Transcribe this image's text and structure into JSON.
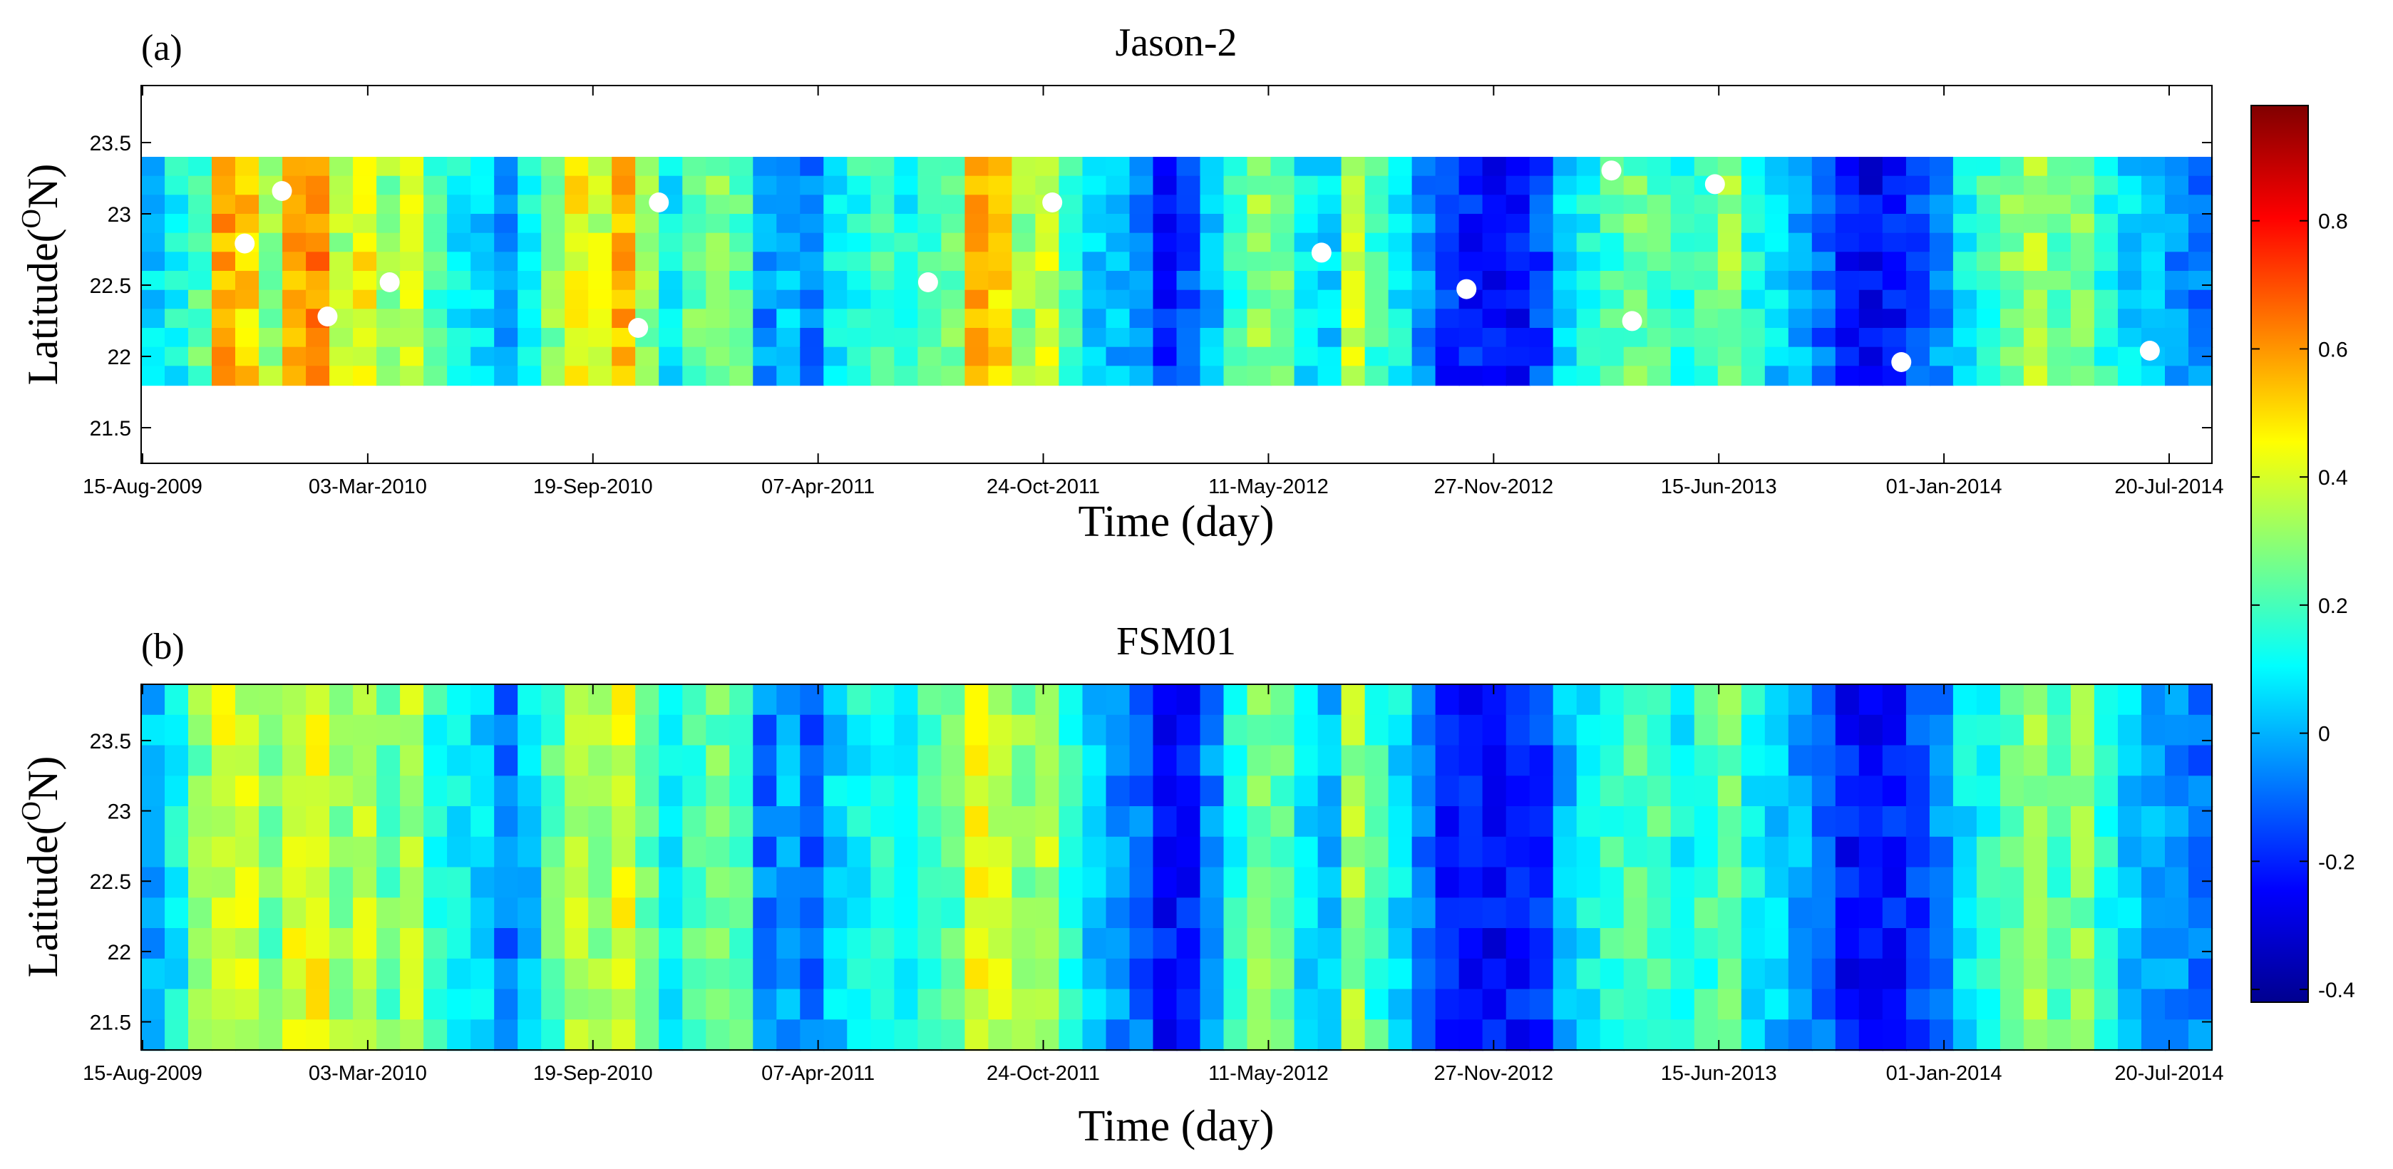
{
  "chart_data": [
    {
      "type": "heatmap",
      "panel_label": "(a)",
      "title": "Jason-2",
      "xlabel": "Time (day)",
      "ylabel_prefix": "Latitude(",
      "ylabel_sup": "O",
      "ylabel_suffix": "N)",
      "x_ticks": [
        "15-Aug-2009",
        "03-Mar-2010",
        "19-Sep-2010",
        "07-Apr-2011",
        "24-Oct-2011",
        "11-May-2012",
        "27-Nov-2012",
        "15-Jun-2013",
        "01-Jan-2014",
        "20-Jul-2014"
      ],
      "y_ticks": [
        "21.5",
        "22",
        "22.5",
        "23",
        "23.5"
      ],
      "xlim": [
        "15-Aug-2009",
        "20-Jul-2014"
      ],
      "ylim": [
        21.25,
        23.9
      ],
      "data_lat_range": [
        21.8,
        23.4
      ],
      "values_by_time": [
        0.05,
        0.12,
        0.22,
        0.58,
        0.52,
        0.3,
        0.55,
        0.62,
        0.35,
        0.45,
        0.3,
        0.38,
        0.2,
        0.1,
        0.05,
        -0.05,
        0.1,
        0.28,
        0.45,
        0.38,
        0.55,
        0.3,
        0.1,
        0.25,
        0.28,
        0.22,
        -0.05,
        0.02,
        -0.08,
        0.08,
        0.15,
        0.18,
        0.12,
        0.22,
        0.25,
        0.58,
        0.48,
        0.3,
        0.38,
        0.18,
        0.05,
        0.0,
        -0.05,
        -0.2,
        -0.15,
        0.0,
        0.18,
        0.3,
        0.25,
        0.08,
        0.05,
        0.38,
        0.2,
        0.1,
        -0.05,
        -0.18,
        -0.2,
        -0.25,
        -0.22,
        -0.15,
        0.05,
        0.12,
        0.2,
        0.25,
        0.22,
        0.15,
        0.2,
        0.3,
        0.12,
        0.05,
        0.0,
        -0.1,
        -0.2,
        -0.25,
        -0.22,
        -0.15,
        -0.05,
        0.1,
        0.18,
        0.28,
        0.35,
        0.25,
        0.3,
        0.15,
        0.05,
        0.0,
        -0.05,
        -0.08
      ],
      "white_cells": [
        "gaps"
      ]
    },
    {
      "type": "heatmap",
      "panel_label": "(b)",
      "title": "FSM01",
      "xlabel": "Time (day)",
      "ylabel_prefix": "Latitude(",
      "ylabel_sup": "O",
      "ylabel_suffix": "N)",
      "x_ticks": [
        "15-Aug-2009",
        "03-Mar-2010",
        "19-Sep-2010",
        "07-Apr-2011",
        "24-Oct-2011",
        "11-May-2012",
        "27-Nov-2012",
        "15-Jun-2013",
        "01-Jan-2014",
        "20-Jul-2014"
      ],
      "y_ticks": [
        "21.5",
        "22",
        "22.5",
        "23",
        "23.5"
      ],
      "xlim": [
        "15-Aug-2009",
        "20-Jul-2014"
      ],
      "ylim": [
        21.3,
        23.9
      ],
      "data_lat_range": [
        21.3,
        23.9
      ],
      "values_by_time": [
        0.0,
        0.1,
        0.28,
        0.4,
        0.38,
        0.25,
        0.42,
        0.45,
        0.3,
        0.38,
        0.25,
        0.35,
        0.15,
        0.1,
        0.05,
        -0.08,
        0.05,
        0.22,
        0.35,
        0.32,
        0.42,
        0.25,
        0.08,
        0.2,
        0.25,
        0.2,
        -0.08,
        0.0,
        -0.1,
        0.05,
        0.12,
        0.15,
        0.1,
        0.18,
        0.22,
        0.42,
        0.38,
        0.28,
        0.35,
        0.15,
        0.02,
        -0.05,
        -0.1,
        -0.22,
        -0.2,
        -0.05,
        0.15,
        0.28,
        0.22,
        0.05,
        0.02,
        0.32,
        0.18,
        0.08,
        -0.08,
        -0.2,
        -0.22,
        -0.25,
        -0.22,
        -0.18,
        0.02,
        0.1,
        0.18,
        0.22,
        0.2,
        0.12,
        0.18,
        0.28,
        0.1,
        0.02,
        -0.02,
        -0.12,
        -0.22,
        -0.25,
        -0.22,
        -0.15,
        -0.05,
        0.08,
        0.15,
        0.22,
        0.32,
        0.22,
        0.28,
        0.12,
        0.02,
        -0.02,
        -0.05,
        -0.08
      ]
    }
  ],
  "colorbar": {
    "ticks": [
      "0.8",
      "0.6",
      "0.4",
      "0.2",
      "0",
      "-0.2",
      "-0.4"
    ],
    "range": [
      -0.42,
      0.98
    ],
    "colormap": "jet",
    "colors": [
      "#00008f",
      "#0000ff",
      "#00ffff",
      "#ffff00",
      "#ff0000",
      "#800000"
    ]
  }
}
